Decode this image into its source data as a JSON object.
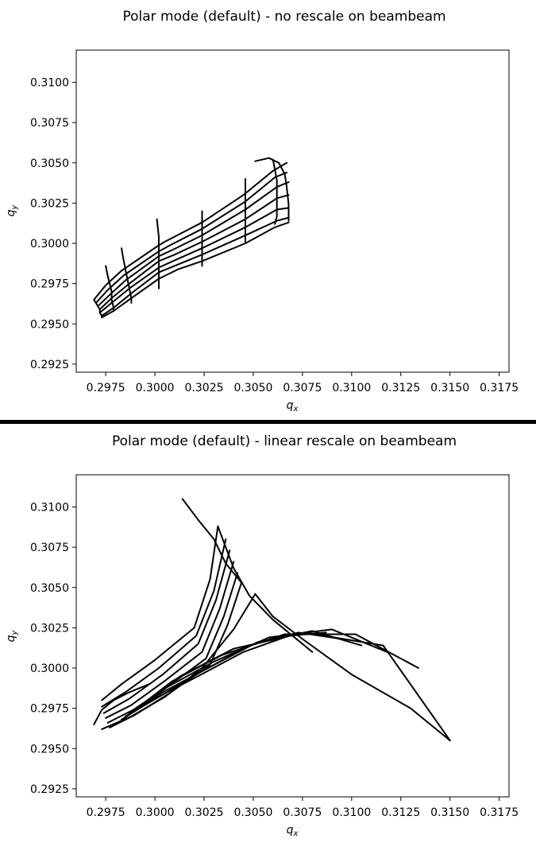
{
  "chart_data": [
    {
      "type": "line",
      "title": "Polar mode (default) - no rescale on beambeam",
      "xlabel": "q",
      "xlabel_sub": "x",
      "ylabel": "q",
      "ylabel_sub": "y",
      "xlim": [
        0.296,
        0.318
      ],
      "ylim": [
        0.292,
        0.312
      ],
      "x_ticks": [
        "0.2975",
        "0.3000",
        "0.3025",
        "0.3050",
        "0.3075",
        "0.3100",
        "0.3125",
        "0.3150",
        "0.3175"
      ],
      "y_ticks": [
        "0.2925",
        "0.2950",
        "0.2975",
        "0.3000",
        "0.3025",
        "0.3050",
        "0.3075",
        "0.3100"
      ],
      "grid": false,
      "series": [
        {
          "x": [
            0.2969,
            0.2975,
            0.2983,
            0.3001,
            0.3005,
            0.3024,
            0.3045,
            0.306,
            0.3067
          ],
          "y": [
            0.2965,
            0.2974,
            0.2983,
            0.2998,
            0.3001,
            0.3013,
            0.303,
            0.3045,
            0.305
          ]
        },
        {
          "x": [
            0.297,
            0.2976,
            0.2984,
            0.3002,
            0.3008,
            0.3024,
            0.3046,
            0.3061,
            0.3067
          ],
          "y": [
            0.2963,
            0.2971,
            0.298,
            0.2995,
            0.2999,
            0.3009,
            0.3026,
            0.3041,
            0.3044
          ]
        },
        {
          "x": [
            0.2971,
            0.2977,
            0.2985,
            0.3002,
            0.3009,
            0.3024,
            0.3046,
            0.3062,
            0.3068
          ],
          "y": [
            0.2961,
            0.2968,
            0.2977,
            0.2992,
            0.2996,
            0.3005,
            0.3021,
            0.3035,
            0.3038
          ]
        },
        {
          "x": [
            0.2972,
            0.2978,
            0.2986,
            0.3002,
            0.301,
            0.3024,
            0.3046,
            0.3062,
            0.3068
          ],
          "y": [
            0.2959,
            0.2966,
            0.2974,
            0.2989,
            0.2993,
            0.3001,
            0.3015,
            0.3028,
            0.303
          ]
        },
        {
          "x": [
            0.2972,
            0.2978,
            0.2987,
            0.3002,
            0.3011,
            0.3024,
            0.3046,
            0.3062,
            0.3068
          ],
          "y": [
            0.2957,
            0.2963,
            0.2972,
            0.2985,
            0.299,
            0.2997,
            0.301,
            0.3021,
            0.3022
          ]
        },
        {
          "x": [
            0.2973,
            0.2979,
            0.2988,
            0.3002,
            0.3012,
            0.3024,
            0.3046,
            0.3062,
            0.3068
          ],
          "y": [
            0.2955,
            0.296,
            0.2969,
            0.2982,
            0.2987,
            0.2993,
            0.3005,
            0.3014,
            0.3016
          ]
        },
        {
          "x": [
            0.2973,
            0.2979,
            0.2988,
            0.3002,
            0.3012,
            0.3024,
            0.3046,
            0.3061,
            0.3068
          ],
          "y": [
            0.2954,
            0.2958,
            0.2966,
            0.2978,
            0.2984,
            0.2989,
            0.3,
            0.301,
            0.3013
          ]
        },
        {
          "x": [
            0.2969,
            0.297,
            0.2971,
            0.2972,
            0.2972,
            0.2973,
            0.2973
          ],
          "y": [
            0.2965,
            0.2963,
            0.2961,
            0.2959,
            0.2957,
            0.2955,
            0.2954
          ]
        },
        {
          "x": [
            0.2975,
            0.2976,
            0.2977,
            0.2978,
            0.2978,
            0.2979,
            0.2979
          ],
          "y": [
            0.2986,
            0.298,
            0.2975,
            0.297,
            0.2965,
            0.296,
            0.2958
          ]
        },
        {
          "x": [
            0.2983,
            0.2984,
            0.2985,
            0.2986,
            0.2987,
            0.2988,
            0.2988
          ],
          "y": [
            0.2997,
            0.299,
            0.2984,
            0.2978,
            0.2972,
            0.2966,
            0.2963
          ]
        },
        {
          "x": [
            0.3001,
            0.3002,
            0.3002,
            0.3002,
            0.3002,
            0.3002,
            0.3002
          ],
          "y": [
            0.3015,
            0.3004,
            0.2995,
            0.2987,
            0.298,
            0.2975,
            0.2972
          ]
        },
        {
          "x": [
            0.3024,
            0.3024,
            0.3024,
            0.3024,
            0.3024,
            0.3024,
            0.3024
          ],
          "y": [
            0.302,
            0.3012,
            0.3006,
            0.3,
            0.2995,
            0.299,
            0.2986
          ]
        },
        {
          "x": [
            0.3046,
            0.3046,
            0.3046,
            0.3046,
            0.3046,
            0.3046,
            0.3046
          ],
          "y": [
            0.304,
            0.3033,
            0.3026,
            0.3019,
            0.3012,
            0.3006,
            0.3001
          ]
        },
        {
          "x": [
            0.306,
            0.3061,
            0.3062,
            0.3062,
            0.3062,
            0.3062,
            0.3061
          ],
          "y": [
            0.3052,
            0.3046,
            0.3039,
            0.3032,
            0.3024,
            0.3017,
            0.3012
          ]
        },
        {
          "x": [
            0.3051,
            0.3058,
            0.3063,
            0.3066,
            0.3067,
            0.3068,
            0.3068
          ],
          "y": [
            0.3051,
            0.3053,
            0.305,
            0.3043,
            0.3035,
            0.3024,
            0.3014
          ]
        }
      ]
    },
    {
      "type": "line",
      "title": "Polar mode (default) - linear rescale on beambeam",
      "xlabel": "q",
      "xlabel_sub": "x",
      "ylabel": "q",
      "ylabel_sub": "y",
      "xlim": [
        0.296,
        0.318
      ],
      "ylim": [
        0.292,
        0.312
      ],
      "x_ticks": [
        "0.2975",
        "0.3000",
        "0.3025",
        "0.3050",
        "0.3075",
        "0.3100",
        "0.3125",
        "0.3150",
        "0.3175"
      ],
      "y_ticks": [
        "0.2925",
        "0.2950",
        "0.2975",
        "0.3000",
        "0.3025",
        "0.3050",
        "0.3075",
        "0.3100"
      ],
      "grid": false,
      "series": [
        {
          "x": [
            0.2973,
            0.2983,
            0.3,
            0.302,
            0.3028,
            0.3032
          ],
          "y": [
            0.298,
            0.299,
            0.3005,
            0.3025,
            0.3055,
            0.3088
          ]
        },
        {
          "x": [
            0.2973,
            0.2985,
            0.3002,
            0.3021,
            0.303,
            0.3036
          ],
          "y": [
            0.2976,
            0.2985,
            0.3,
            0.302,
            0.3048,
            0.308
          ]
        },
        {
          "x": [
            0.2974,
            0.2987,
            0.3004,
            0.3022,
            0.3031,
            0.3038
          ],
          "y": [
            0.2972,
            0.2981,
            0.2996,
            0.3015,
            0.3042,
            0.3073
          ]
        },
        {
          "x": [
            0.2975,
            0.2988,
            0.3005,
            0.3024,
            0.3033,
            0.304
          ],
          "y": [
            0.2969,
            0.2977,
            0.2992,
            0.301,
            0.3037,
            0.3066
          ]
        },
        {
          "x": [
            0.2976,
            0.2989,
            0.3006,
            0.3026,
            0.3035,
            0.3042
          ],
          "y": [
            0.2966,
            0.2974,
            0.2988,
            0.3006,
            0.3032,
            0.3059
          ]
        },
        {
          "x": [
            0.2977,
            0.299,
            0.3007,
            0.3028,
            0.3037,
            0.3044
          ],
          "y": [
            0.2963,
            0.2971,
            0.2984,
            0.3002,
            0.3027,
            0.3053
          ]
        },
        {
          "x": [
            0.2973,
            0.2988,
            0.3005,
            0.3024,
            0.304,
            0.3051
          ],
          "y": [
            0.2962,
            0.297,
            0.2982,
            0.3,
            0.3024,
            0.3046
          ]
        },
        {
          "x": [
            0.2983,
            0.3,
            0.3022,
            0.3045,
            0.3068,
            0.3087
          ],
          "y": [
            0.2968,
            0.2981,
            0.2995,
            0.301,
            0.302,
            0.3022
          ]
        },
        {
          "x": [
            0.2985,
            0.3002,
            0.3024,
            0.3048,
            0.3073,
            0.3095
          ],
          "y": [
            0.297,
            0.2982,
            0.2998,
            0.3014,
            0.3022,
            0.3018
          ]
        },
        {
          "x": [
            0.2987,
            0.3004,
            0.3027,
            0.3052,
            0.308,
            0.3105
          ],
          "y": [
            0.2972,
            0.2985,
            0.3,
            0.3016,
            0.3023,
            0.3014
          ]
        },
        {
          "x": [
            0.299,
            0.3006,
            0.303,
            0.3058,
            0.309,
            0.3118
          ],
          "y": [
            0.2974,
            0.2988,
            0.3004,
            0.3019,
            0.3024,
            0.301
          ]
        },
        {
          "x": [
            0.2993,
            0.3009,
            0.3034,
            0.3066,
            0.3102,
            0.3134
          ],
          "y": [
            0.2977,
            0.2992,
            0.3008,
            0.3021,
            0.3021,
            0.3
          ]
        },
        {
          "x": [
            0.2997,
            0.3013,
            0.304,
            0.3076,
            0.3116,
            0.315
          ],
          "y": [
            0.298,
            0.2995,
            0.3012,
            0.3022,
            0.3014,
            0.2955
          ]
        },
        {
          "x": [
            0.2969,
            0.2973,
            0.2979,
            0.2987,
            0.2997
          ],
          "y": [
            0.2965,
            0.2974,
            0.298,
            0.2985,
            0.299
          ]
        },
        {
          "x": [
            0.3032,
            0.304,
            0.3048,
            0.306,
            0.308
          ],
          "y": [
            0.3088,
            0.3062,
            0.3045,
            0.303,
            0.301
          ]
        },
        {
          "x": [
            0.3051,
            0.306,
            0.3075,
            0.31,
            0.313,
            0.315
          ],
          "y": [
            0.3046,
            0.3032,
            0.3018,
            0.2996,
            0.2975,
            0.2955
          ]
        },
        {
          "x": [
            0.3014,
            0.3022,
            0.303,
            0.3036,
            0.3044
          ],
          "y": [
            0.3105,
            0.3092,
            0.308,
            0.3065,
            0.3053
          ]
        }
      ]
    }
  ]
}
